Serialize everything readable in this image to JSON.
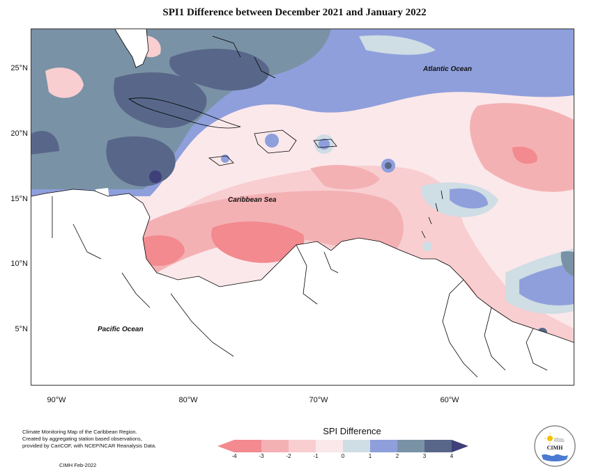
{
  "title": "SPI1 Difference between December 2021 and January 2022",
  "map": {
    "ocean_labels": [
      "Atlantic Ocean",
      "Caribbean Sea",
      "Pacific Ocean"
    ],
    "lat_labels": [
      "25°N",
      "20°N",
      "15°N",
      "10°N",
      "5°N"
    ],
    "lon_labels": [
      "90°W",
      "80°W",
      "70°W",
      "60°W"
    ]
  },
  "legend": {
    "title": "SPI Difference",
    "ticks": [
      "-4",
      "-3",
      "-2",
      "-1",
      "0",
      "1",
      "2",
      "3",
      "4"
    ],
    "colors": {
      "lt_-3": "#f28a8f",
      "-3_-2": "#f4b1b4",
      "-2_-1": "#f8ced1",
      "-1_0": "#fbe8ea",
      "0_1": "#cfdde4",
      "1_2": "#8f9fdc",
      "2_3": "#7a92a6",
      "3_4": "#586789",
      "gt_4": "#3f3f7a"
    }
  },
  "credits": {
    "lines": [
      "Climate Monitoring Map of the Caribbean Region.",
      "Created by aggregating station based observations,",
      "provided by CariCOF, with NCEP/NCAR Reanalysis Data."
    ],
    "date": "CIMH Feb-2022"
  },
  "logo": {
    "text": "CIMH",
    "icon": "cimh-logo-icon"
  }
}
